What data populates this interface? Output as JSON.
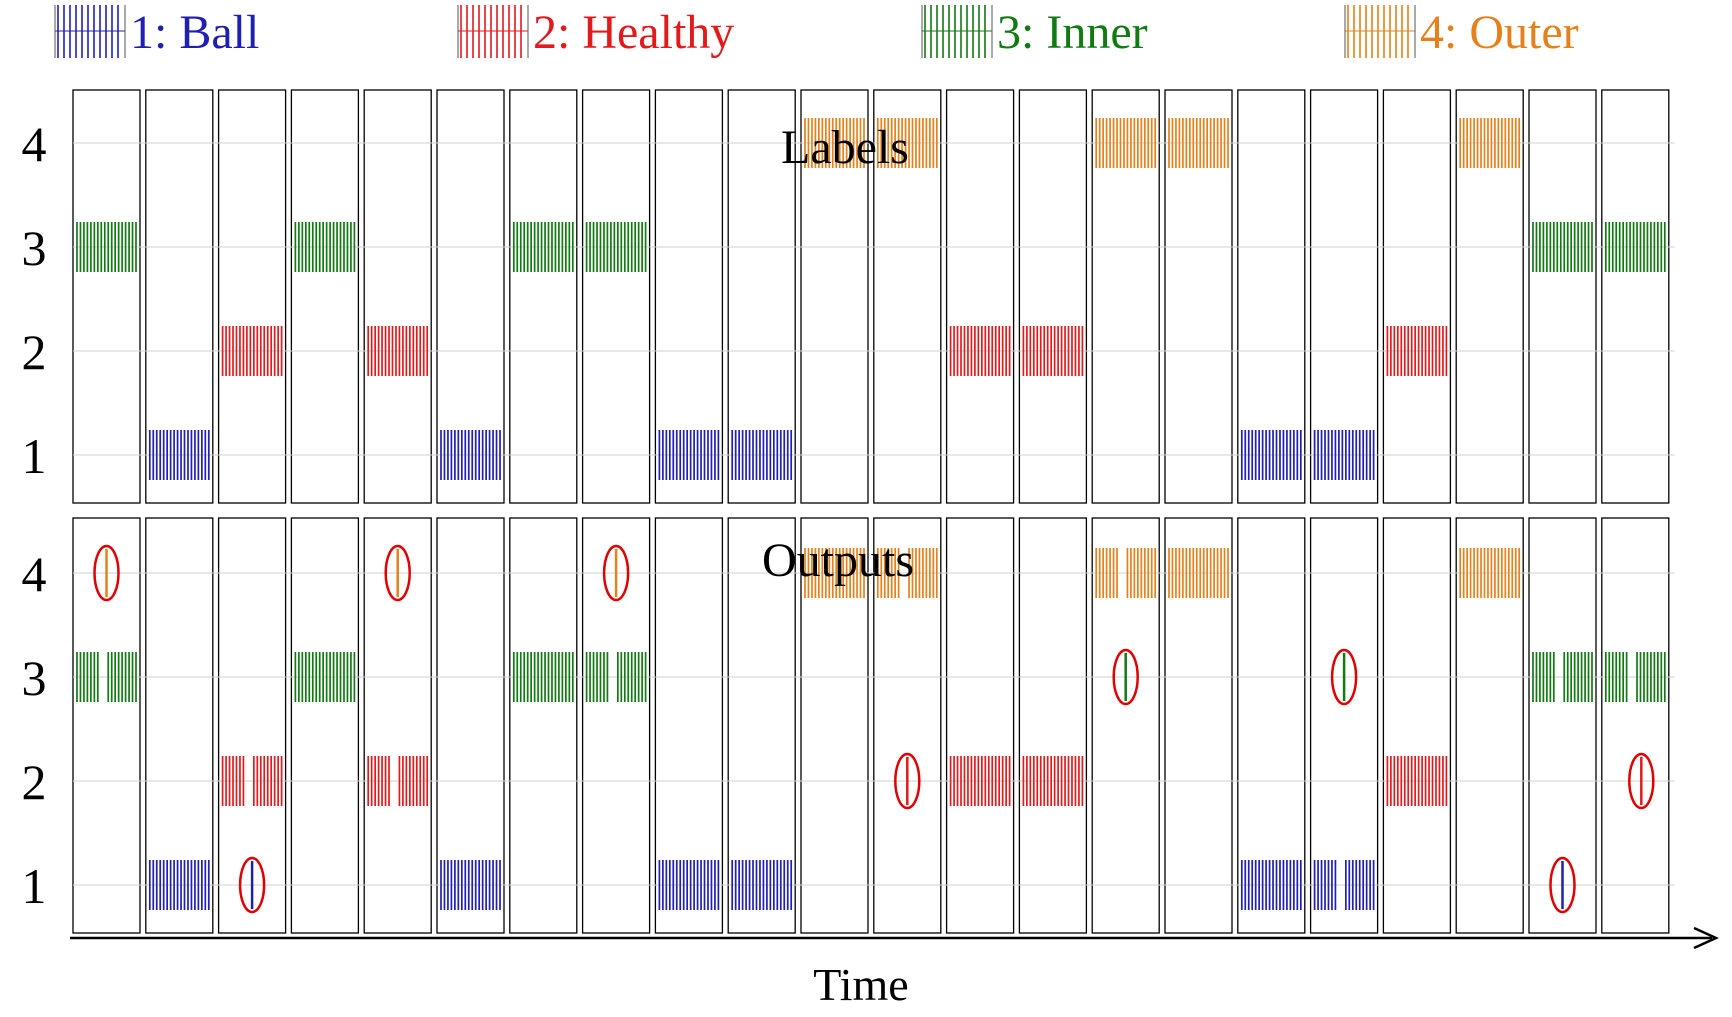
{
  "legend": [
    {
      "id": 1,
      "label": "1: Ball",
      "color": "#1f1fb4"
    },
    {
      "id": 2,
      "label": "2: Healthy",
      "color": "#e31a1c"
    },
    {
      "id": 3,
      "label": "3: Inner",
      "color": "#127a12"
    },
    {
      "id": 4,
      "label": "4: Outer",
      "color": "#e6801a"
    }
  ],
  "xlabel": "Time",
  "chart_data": [
    {
      "type": "bar",
      "title": "Labels",
      "yticks": [
        1,
        2,
        3,
        4
      ],
      "ylim": [
        0.5,
        4.5
      ],
      "segments": 22,
      "values": [
        3,
        1,
        2,
        3,
        2,
        1,
        3,
        3,
        1,
        1,
        4,
        4,
        2,
        2,
        4,
        4,
        1,
        1,
        2,
        4,
        3,
        3
      ]
    },
    {
      "type": "bar",
      "title": "Outputs",
      "yticks": [
        1,
        2,
        3,
        4
      ],
      "ylim": [
        0.5,
        4.5
      ],
      "segments": 22,
      "values": [
        3,
        1,
        2,
        3,
        2,
        1,
        3,
        3,
        1,
        1,
        4,
        4,
        2,
        2,
        4,
        4,
        1,
        1,
        2,
        4,
        3,
        3
      ],
      "errors": [
        {
          "segment": 1,
          "value": 4
        },
        {
          "segment": 3,
          "value": 1
        },
        {
          "segment": 5,
          "value": 4
        },
        {
          "segment": 8,
          "value": 4
        },
        {
          "segment": 12,
          "value": 2
        },
        {
          "segment": 15,
          "value": 3
        },
        {
          "segment": 18,
          "value": 3
        },
        {
          "segment": 21,
          "value": 1
        },
        {
          "segment": 22,
          "value": 2
        }
      ],
      "error_marker_color": "#e00000"
    }
  ]
}
